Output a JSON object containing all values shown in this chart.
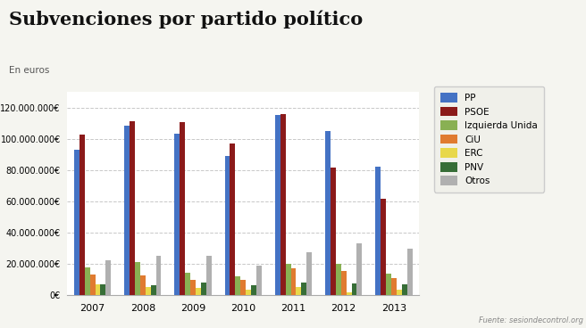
{
  "title": "Subvenciones por partido político",
  "subtitle": "En euros",
  "source": "Fuente: sesiondecontrol.org",
  "years": [
    2007,
    2008,
    2009,
    2010,
    2011,
    2012,
    2013
  ],
  "parties": [
    "PP",
    "PSOE",
    "Izquierda Unida",
    "CiU",
    "ERC",
    "PNV",
    "Otros"
  ],
  "colors": [
    "#4472c4",
    "#8b1a1a",
    "#89b053",
    "#e07b30",
    "#e8d84a",
    "#376e37",
    "#b0b0b0"
  ],
  "data": {
    "PP": [
      93000000,
      108500000,
      103000000,
      89000000,
      115000000,
      105000000,
      82000000
    ],
    "PSOE": [
      102500000,
      111500000,
      110500000,
      97000000,
      115500000,
      81500000,
      61500000
    ],
    "Izquierda Unida": [
      17500000,
      21000000,
      14500000,
      12000000,
      20000000,
      20000000,
      14000000
    ],
    "CiU": [
      13000000,
      12500000,
      10000000,
      10000000,
      17000000,
      15500000,
      11000000
    ],
    "ERC": [
      7000000,
      5500000,
      4500000,
      3500000,
      5000000,
      2000000,
      3500000
    ],
    "PNV": [
      7000000,
      6500000,
      8000000,
      6500000,
      8000000,
      7500000,
      7000000
    ],
    "Otros": [
      22500000,
      25000000,
      25000000,
      19000000,
      27500000,
      33000000,
      30000000
    ]
  },
  "ylim": [
    0,
    130000000
  ],
  "yticks": [
    0,
    20000000,
    40000000,
    60000000,
    80000000,
    100000000,
    120000000
  ],
  "background_color": "#f5f5f0",
  "plot_bg_color": "#ffffff",
  "legend_bg": "#f0f0ea",
  "grid_color": "#c8c8c8"
}
